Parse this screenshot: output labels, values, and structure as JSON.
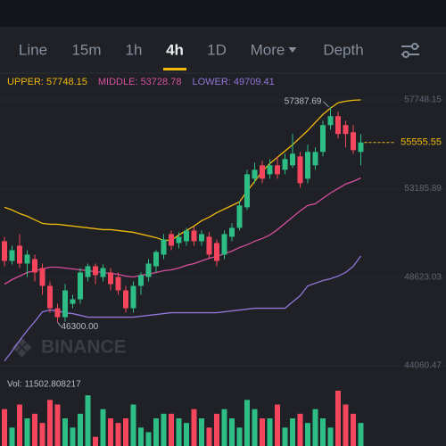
{
  "toolbar": {
    "tabs": [
      "Line",
      "15m",
      "1h",
      "4h",
      "1D",
      "More",
      "Depth"
    ],
    "active": 3
  },
  "chart_data": {
    "type": "candlestick",
    "bands": [
      {
        "name": "UPPER",
        "legend_label": "UPPER: 57748.15",
        "color": "#f0b90b",
        "values": [
          52218,
          52080,
          51896,
          51758,
          51574,
          51390,
          51344,
          51344,
          51298,
          51252,
          51206,
          51160,
          51114,
          51068,
          51068,
          51022,
          50976,
          50930,
          50838,
          50746,
          50654,
          50516,
          50516,
          50792,
          51022,
          51252,
          51528,
          51712,
          51942,
          52126,
          52310,
          52494,
          53046,
          53552,
          54058,
          54472,
          54794,
          55116,
          55438,
          55806,
          56174,
          56588,
          57002,
          57324,
          57600,
          57680,
          57730,
          57748.15
        ]
      },
      {
        "name": "MIDDLE",
        "legend_label": "MIDDLE: 53728.78",
        "color": "#d64f9e",
        "values": [
          48262,
          48492,
          48676,
          48860,
          48952,
          49044,
          49136,
          49136,
          49090,
          49044,
          48998,
          48952,
          48906,
          48860,
          48814,
          48768,
          48676,
          48630,
          48722,
          48768,
          48860,
          48952,
          48998,
          49090,
          49228,
          49320,
          49458,
          49596,
          49688,
          49826,
          49964,
          50148,
          50286,
          50470,
          50608,
          50792,
          51068,
          51390,
          51712,
          52034,
          52310,
          52402,
          52678,
          52954,
          53184,
          53414,
          53552,
          53728.78
        ]
      },
      {
        "name": "LOWER",
        "legend_label": "LOWER: 49709.41",
        "color": "#9275d8",
        "values": [
          44306,
          44812,
          45364,
          45870,
          46330,
          46836,
          46928,
          46882,
          46790,
          46744,
          46652,
          46560,
          46560,
          46560,
          46560,
          46560,
          46560,
          46560,
          46606,
          46652,
          46698,
          46744,
          46790,
          46790,
          46790,
          46790,
          46790,
          46790,
          46790,
          46836,
          46882,
          46928,
          46974,
          47020,
          47020,
          47020,
          47020,
          47020,
          47342,
          47664,
          48170,
          48308,
          48446,
          48538,
          48676,
          48860,
          49182,
          49709.41
        ]
      }
    ],
    "open": [
      50470,
      49458,
      50240,
      49320,
      49550,
      49090,
      48170,
      47020,
      46560,
      47250,
      47480,
      48630,
      49182,
      48630,
      48860,
      48630,
      47940,
      47020,
      48170,
      48630,
      49182,
      49780,
      50838,
      50378,
      50470,
      51022,
      50470,
      50700,
      50378,
      49780,
      50700,
      51160,
      52218,
      53690,
      54380,
      53920,
      54380,
      54150,
      54380,
      54840,
      53690,
      54380,
      55070,
      56450,
      56910,
      56450,
      56082,
      55070
    ],
    "high": [
      50700,
      50240,
      50838,
      50010,
      49780,
      49320,
      48400,
      47250,
      48262,
      47710,
      49090,
      49320,
      49320,
      49274,
      49090,
      48860,
      48170,
      48400,
      48860,
      49550,
      50010,
      50838,
      51022,
      50930,
      51160,
      51206,
      51022,
      50930,
      50562,
      51022,
      51390,
      52540,
      54150,
      54518,
      54610,
      54702,
      54840,
      54978,
      55990,
      55070,
      55438,
      55300,
      56680,
      57387.69,
      57140,
      56680,
      56450,
      55990
    ],
    "low": [
      49182,
      49274,
      49090,
      48630,
      48400,
      47710,
      46790,
      46300,
      46330,
      47020,
      47250,
      48400,
      48262,
      48400,
      47940,
      47710,
      46790,
      46790,
      47710,
      48400,
      48860,
      49550,
      50010,
      50102,
      50240,
      50240,
      50240,
      49550,
      49182,
      49550,
      50470,
      51022,
      52080,
      53460,
      53460,
      53690,
      53690,
      53920,
      54242,
      53230,
      53460,
      54150,
      54840,
      56220,
      55760,
      55300,
      54978,
      54380
    ],
    "close": [
      49458,
      50010,
      49320,
      49780,
      48860,
      48170,
      47020,
      46560,
      47940,
      47480,
      48860,
      49182,
      48722,
      49090,
      48262,
      47940,
      47020,
      48170,
      48722,
      49320,
      49918,
      50562,
      50240,
      50700,
      51022,
      50470,
      50838,
      49780,
      49458,
      50838,
      51160,
      52310,
      53920,
      54150,
      53690,
      54380,
      53920,
      54702,
      54978,
      53460,
      55070,
      55070,
      56450,
      56910,
      55990,
      55990,
      55162,
      55555.55
    ],
    "up_color": "#2ebd85",
    "down_color": "#f6465d",
    "high_label": "57387.69",
    "low_label": "46300.00",
    "last_price": 55555.55,
    "last_price_color": "#f0b90b",
    "ylim": [
      43600,
      58300
    ],
    "yticks": [
      57748.15,
      53185.89,
      48623.03,
      44060.47
    ],
    "grid": true,
    "watermark": "BINANCE",
    "volume_label": "Vol: 11502.808217",
    "volume": [
      18400,
      9200,
      20700,
      13800,
      16100,
      11500,
      23000,
      20700,
      13800,
      9200,
      16100,
      25300,
      4600,
      18400,
      13800,
      11500,
      13800,
      20700,
      9200,
      6900,
      13800,
      16100,
      16100,
      13800,
      11500,
      18400,
      13800,
      9200,
      16100,
      18400,
      13800,
      9200,
      23000,
      18400,
      13800,
      13800,
      20700,
      9200,
      13800,
      16100,
      11500,
      18400,
      13800,
      9200,
      27600,
      20700,
      16100,
      11502.808217
    ]
  }
}
